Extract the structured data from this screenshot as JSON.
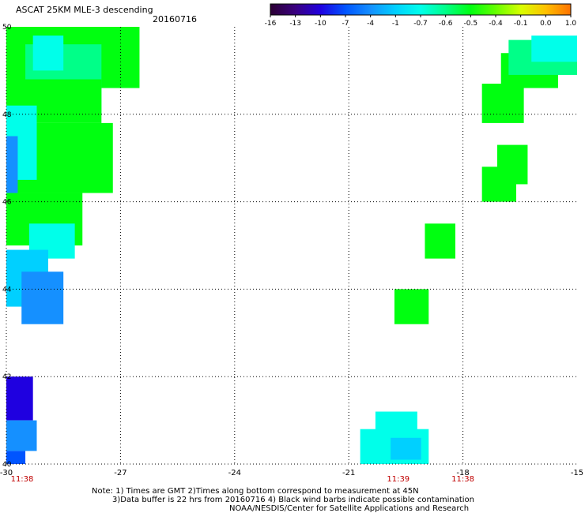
{
  "header": {
    "title": "ASCAT 25KM MLE-3 descending",
    "date": "20160716"
  },
  "colorbar": {
    "labels": [
      "-16",
      "-13",
      "-10",
      "-7",
      "-4",
      "-1",
      "-0.7",
      "-0.6",
      "-0.5",
      "-0.4",
      "-0.1",
      "0.0",
      "1.0"
    ],
    "colors": [
      "#2b0033",
      "#3a0080",
      "#1f00e0",
      "#0055ff",
      "#1590ff",
      "#00d0ff",
      "#00ffea",
      "#00ff88",
      "#00ff10",
      "#66ff00",
      "#d8ff00",
      "#ffc000",
      "#ff7000",
      "#ff1a00"
    ]
  },
  "colors": {
    "time_label": "#c00000",
    "grid": "#000000"
  },
  "notes": {
    "line1": "Note: 1) Times are GMT 2)Times along bottom correspond to measurement at 45N",
    "line2": "3)Data buffer is 22 hrs from 20160716 4) Black wind barbs indicate possible contamination",
    "line3": "NOAA/NESDIS/Center for Satellite Applications and Research"
  },
  "chart_data": {
    "type": "heatmap",
    "title": "ASCAT 25KM MLE-3 descending",
    "xlim": [
      -30,
      -15
    ],
    "ylim": [
      40,
      50
    ],
    "x_ticks": [
      "-30",
      "-27",
      "-24",
      "-21",
      "-18",
      "-15"
    ],
    "y_ticks": [
      "40",
      "42",
      "44",
      "46",
      "48",
      "50"
    ],
    "grid": true,
    "time_labels": [
      {
        "x": -30,
        "label": "11:38"
      },
      {
        "x": -19.7,
        "label": "11:39"
      },
      {
        "x": -18,
        "label": "11:38"
      }
    ],
    "patches": [
      {
        "lon": [
          -30,
          -26.5
        ],
        "lat": [
          48.6,
          50
        ],
        "color": "#00ff10"
      },
      {
        "lon": [
          -29.5,
          -27.5
        ],
        "lat": [
          48.0,
          49.6
        ],
        "color": "#00ff88"
      },
      {
        "lon": [
          -29.3,
          -28.5
        ],
        "lat": [
          49.0,
          49.8
        ],
        "color": "#00ffea"
      },
      {
        "lon": [
          -30,
          -27.5
        ],
        "lat": [
          47.8,
          48.8
        ],
        "color": "#00ff10"
      },
      {
        "lon": [
          -30,
          -27.2
        ],
        "lat": [
          46.2,
          47.8
        ],
        "color": "#00ff10"
      },
      {
        "lon": [
          -30,
          -28.0
        ],
        "lat": [
          45.0,
          46.2
        ],
        "color": "#00ff10"
      },
      {
        "lon": [
          -30,
          -29.2
        ],
        "lat": [
          46.5,
          48.2
        ],
        "color": "#00ffea"
      },
      {
        "lon": [
          -30,
          -29.7
        ],
        "lat": [
          46.2,
          47.5
        ],
        "color": "#1590ff"
      },
      {
        "lon": [
          -29.4,
          -28.2
        ],
        "lat": [
          44.7,
          45.5
        ],
        "color": "#00ffea"
      },
      {
        "lon": [
          -30,
          -28.9
        ],
        "lat": [
          43.6,
          44.9
        ],
        "color": "#00d0ff"
      },
      {
        "lon": [
          -29.6,
          -28.5
        ],
        "lat": [
          43.2,
          44.4
        ],
        "color": "#1590ff"
      },
      {
        "lon": [
          -30,
          -29.3
        ],
        "lat": [
          41.0,
          42.0
        ],
        "color": "#1f00e0"
      },
      {
        "lon": [
          -30,
          -29.2
        ],
        "lat": [
          40.3,
          41.0
        ],
        "color": "#1590ff"
      },
      {
        "lon": [
          -30,
          -29.5
        ],
        "lat": [
          40.0,
          40.3
        ],
        "color": "#0055ff"
      },
      {
        "lon": [
          -20.3,
          -19.2
        ],
        "lat": [
          40.5,
          41.2
        ],
        "color": "#00ffea"
      },
      {
        "lon": [
          -20.7,
          -18.9
        ],
        "lat": [
          40.0,
          40.8
        ],
        "color": "#00ffea"
      },
      {
        "lon": [
          -19.9,
          -19.1
        ],
        "lat": [
          40.1,
          40.6
        ],
        "color": "#00d0ff"
      },
      {
        "lon": [
          -19.8,
          -18.9
        ],
        "lat": [
          43.2,
          44.0
        ],
        "color": "#00ff10"
      },
      {
        "lon": [
          -19.0,
          -18.2
        ],
        "lat": [
          44.7,
          45.5
        ],
        "color": "#00ff10"
      },
      {
        "lon": [
          -17.5,
          -16.6
        ],
        "lat": [
          46.0,
          46.8
        ],
        "color": "#00ff10"
      },
      {
        "lon": [
          -17.1,
          -16.3
        ],
        "lat": [
          46.4,
          47.3
        ],
        "color": "#00ff10"
      },
      {
        "lon": [
          -17.5,
          -16.4
        ],
        "lat": [
          47.8,
          48.7
        ],
        "color": "#00ff10"
      },
      {
        "lon": [
          -17.0,
          -15.5
        ],
        "lat": [
          48.6,
          49.4
        ],
        "color": "#00ff10"
      },
      {
        "lon": [
          -16.8,
          -15.0
        ],
        "lat": [
          48.9,
          49.7
        ],
        "color": "#00ff88"
      },
      {
        "lon": [
          -16.2,
          -15.0
        ],
        "lat": [
          49.2,
          49.8
        ],
        "color": "#00ffea"
      }
    ]
  }
}
